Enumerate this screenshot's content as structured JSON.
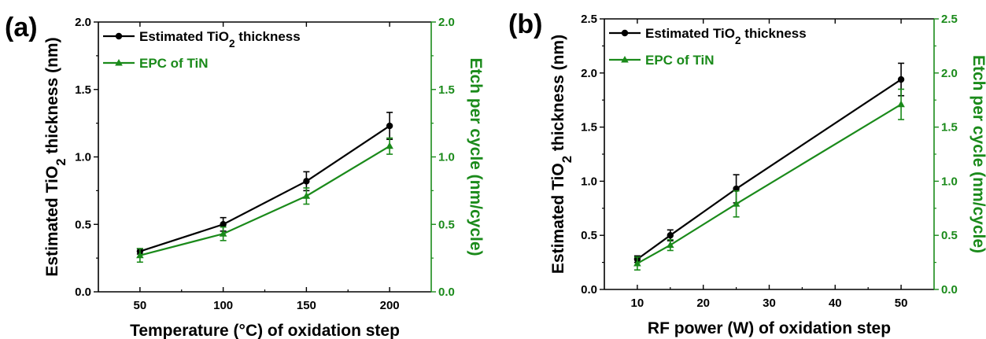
{
  "chart_data": [
    {
      "panel": "(a)",
      "type": "line",
      "xlabel": "Temperature (°C) of oxidation step",
      "ylabel": "Estimated TiO2 thickness (nm)",
      "ylabel_parts": [
        "Estimated TiO",
        "2",
        " thickness (nm)"
      ],
      "y2label": "Etch per cycle (nm/cycle)",
      "xlim": [
        25,
        225
      ],
      "ylim": [
        0,
        2.0
      ],
      "y2lim": [
        0,
        2.0
      ],
      "x_ticks": [
        50,
        100,
        150,
        200
      ],
      "y_ticks": [
        0.0,
        0.5,
        1.0,
        1.5,
        2.0
      ],
      "y2_ticks": [
        0.0,
        0.5,
        1.0,
        1.5,
        2.0
      ],
      "legend_position": "top-left",
      "grid": false,
      "series": [
        {
          "name": "Estimated TiO2 thickness",
          "name_parts": [
            "Estimated TiO",
            "2",
            " thickness"
          ],
          "axis": "left",
          "color": "#000000",
          "marker": "circle",
          "x": [
            50,
            100,
            150,
            200
          ],
          "y": [
            0.3,
            0.5,
            0.82,
            1.23
          ],
          "err": [
            0.02,
            0.05,
            0.07,
            0.1
          ]
        },
        {
          "name": "EPC of TiN",
          "axis": "right",
          "color": "#1a8a1a",
          "marker": "triangle",
          "x": [
            50,
            100,
            150,
            200
          ],
          "y": [
            0.27,
            0.43,
            0.71,
            1.08
          ],
          "err": [
            0.05,
            0.05,
            0.06,
            0.06
          ]
        }
      ]
    },
    {
      "panel": "(b)",
      "type": "line",
      "xlabel": "RF power (W) of oxidation step",
      "ylabel": "Estimated TiO2 thickness (nm)",
      "ylabel_parts": [
        "Estimated TiO",
        "2",
        " thickness (nm)"
      ],
      "y2label": "Etch per cycle (nm/cycle)",
      "xlim": [
        5,
        55
      ],
      "ylim": [
        0,
        2.5
      ],
      "y2lim": [
        0,
        2.5
      ],
      "x_ticks": [
        10,
        20,
        30,
        40,
        50
      ],
      "y_ticks": [
        0.0,
        0.5,
        1.0,
        1.5,
        2.0,
        2.5
      ],
      "y2_ticks": [
        0.0,
        0.5,
        1.0,
        1.5,
        2.0,
        2.5
      ],
      "legend_position": "top-left",
      "grid": false,
      "series": [
        {
          "name": "Estimated TiO2 thickness",
          "name_parts": [
            "Estimated TiO",
            "2",
            " thickness"
          ],
          "axis": "left",
          "color": "#000000",
          "marker": "circle",
          "x": [
            10,
            15,
            25,
            50
          ],
          "y": [
            0.28,
            0.5,
            0.93,
            1.94
          ],
          "err": [
            0.03,
            0.05,
            0.13,
            0.15
          ]
        },
        {
          "name": "EPC of TiN",
          "axis": "right",
          "color": "#1a8a1a",
          "marker": "triangle",
          "x": [
            10,
            15,
            25,
            50
          ],
          "y": [
            0.24,
            0.41,
            0.79,
            1.71
          ],
          "err": [
            0.06,
            0.05,
            0.12,
            0.14
          ]
        }
      ]
    }
  ]
}
